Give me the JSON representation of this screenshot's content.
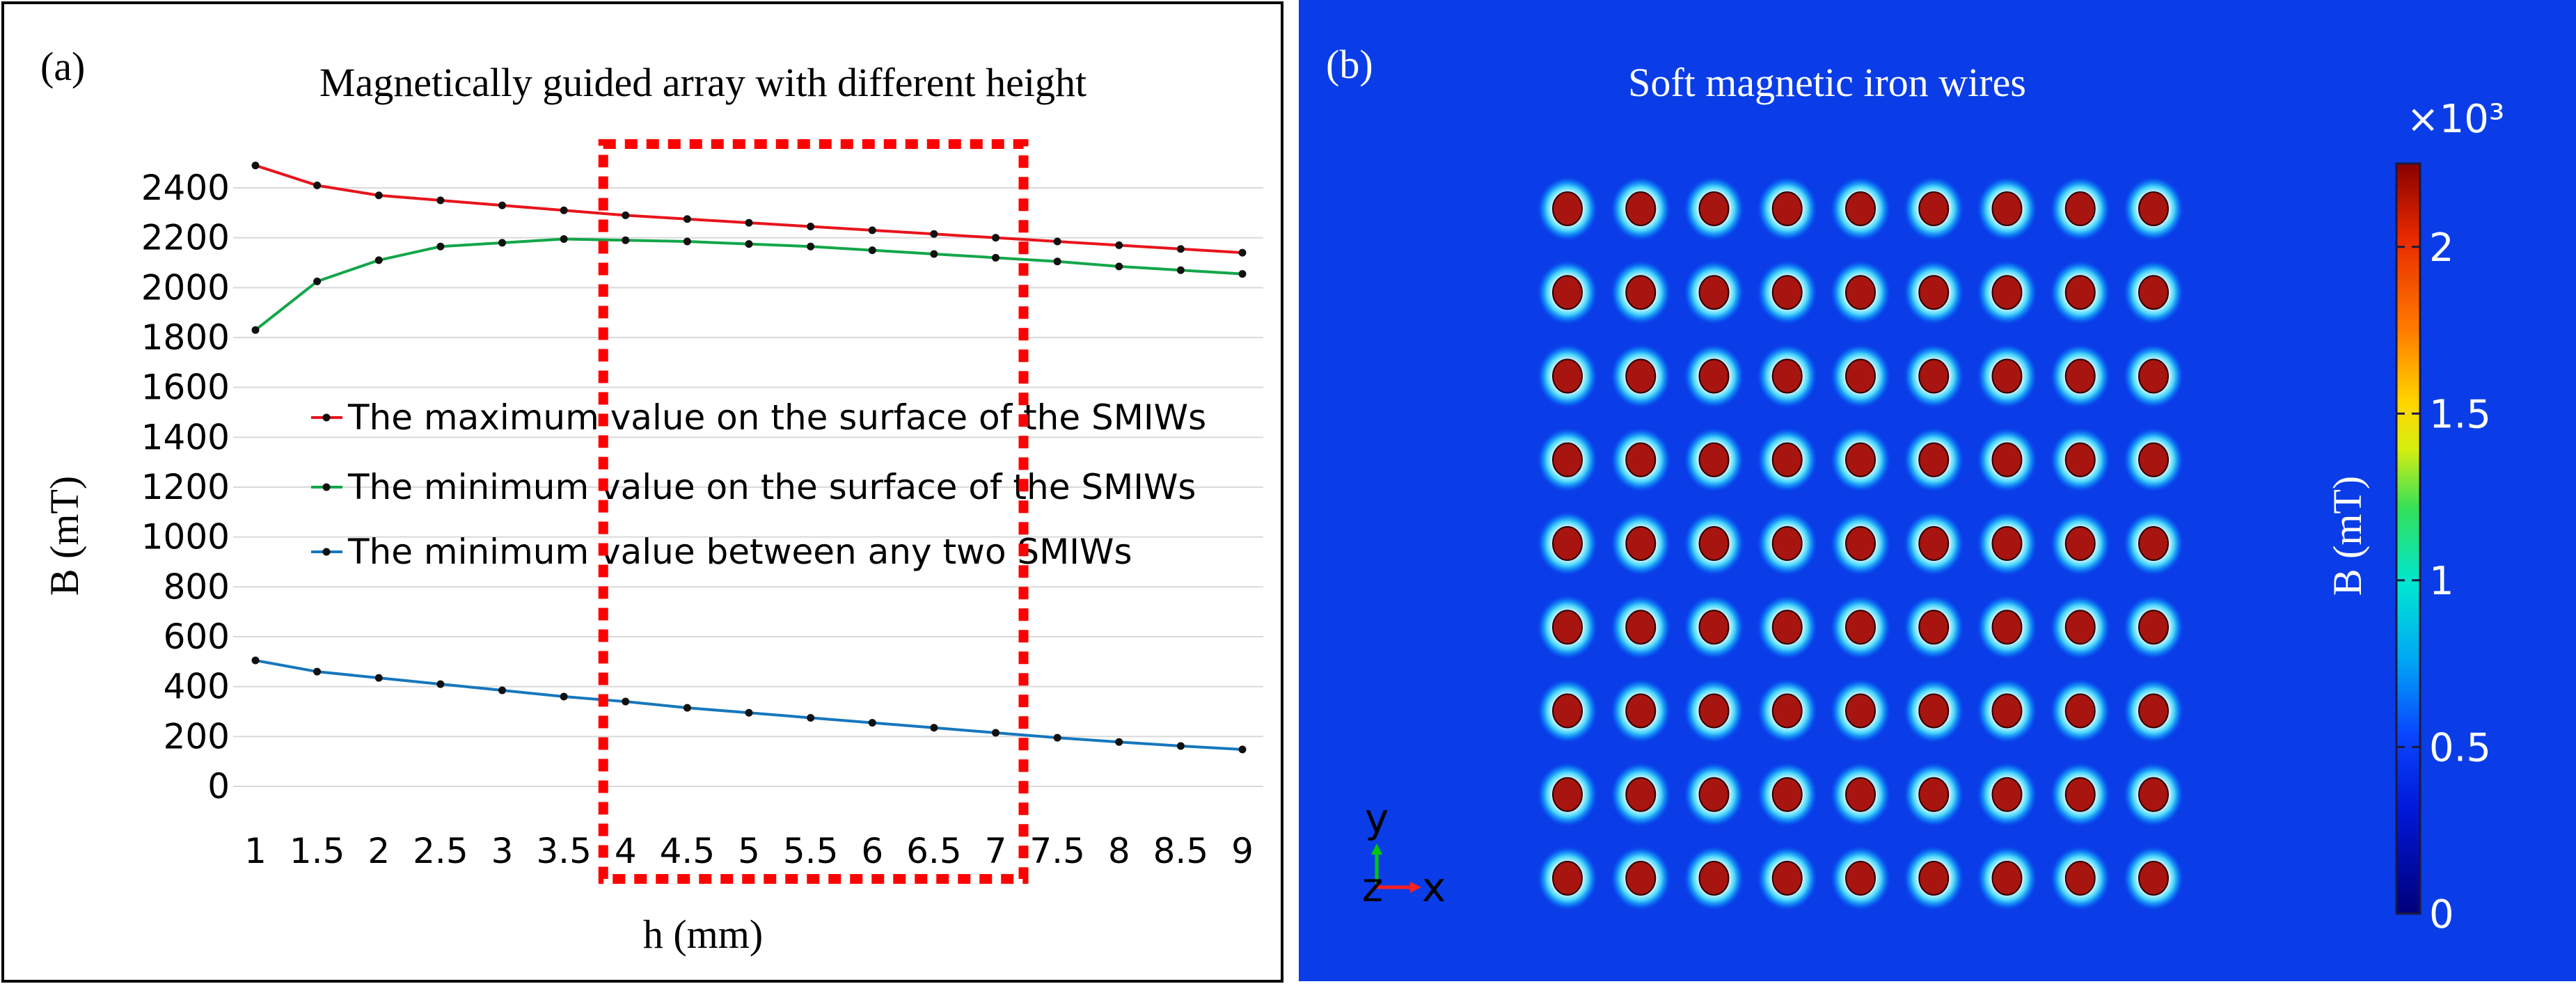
{
  "panel_a": {
    "label": "(a)",
    "highlight_range": [
      4,
      7
    ],
    "chart_data": {
      "type": "line",
      "title": "Magnetically guided array with different height",
      "xlabel": "h (mm)",
      "ylabel": "B (mT)",
      "categories": [
        "1",
        "1.5",
        "2",
        "2.5",
        "3",
        "3.5",
        "4",
        "4.5",
        "5",
        "5.5",
        "6",
        "6.5",
        "7",
        "7.5",
        "8",
        "8.5",
        "9"
      ],
      "yticks": [
        0,
        200,
        400,
        600,
        800,
        1000,
        1200,
        1400,
        1600,
        1800,
        2000,
        2200,
        2400
      ],
      "ylim": [
        0,
        2400
      ],
      "grid": true,
      "legend_position": "center-left",
      "series": [
        {
          "name": "The maximum value on the surface of the SMIWs",
          "color": "#e8141c",
          "values": [
            2490,
            2410,
            2370,
            2350,
            2330,
            2310,
            2290,
            2275,
            2260,
            2245,
            2230,
            2215,
            2200,
            2185,
            2170,
            2155,
            2140
          ]
        },
        {
          "name": "The minimum value on the surface of the SMIWs",
          "color": "#12a64a",
          "values": [
            1830,
            2025,
            2110,
            2165,
            2180,
            2195,
            2190,
            2185,
            2175,
            2165,
            2150,
            2135,
            2120,
            2105,
            2085,
            2070,
            2055
          ]
        },
        {
          "name": "The minimum value between any two SMIWs",
          "color": "#1677bd",
          "values": [
            505,
            460,
            435,
            410,
            385,
            360,
            340,
            315,
            295,
            275,
            255,
            235,
            215,
            195,
            178,
            162,
            148
          ]
        }
      ]
    }
  },
  "panel_b": {
    "label": "(b)",
    "title": "Soft magnetic iron wires",
    "grid_rows": 9,
    "grid_cols": 9,
    "axis_y": "y",
    "axis_x": "x",
    "axis_z": "z",
    "background_color": "#0a3de8",
    "wire_color": "#a8140f",
    "colorbar": {
      "label": "B (mT)",
      "exponent": "×10³",
      "ticks": [
        "0",
        "0.5",
        "1",
        "1.5",
        "2"
      ],
      "tick_values": [
        0,
        0.5,
        1,
        1.5,
        2
      ],
      "max": 2.25
    }
  }
}
